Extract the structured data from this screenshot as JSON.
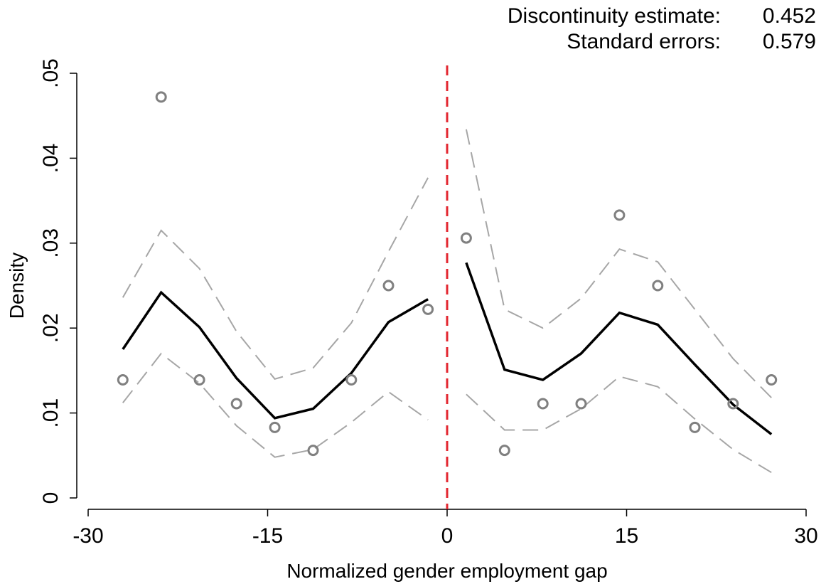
{
  "annotations": {
    "estimate_label": "Discontinuity estimate:",
    "estimate_value": "0.452",
    "se_label": "Standard errors:",
    "se_value": "0.579"
  },
  "chart_data": {
    "type": "scatter",
    "title": "",
    "xlabel": "Normalized gender employment gap",
    "ylabel": "Density",
    "xlim": [
      -30,
      30
    ],
    "ylim": [
      0,
      0.05
    ],
    "xticks": [
      -30,
      -15,
      0,
      15,
      30
    ],
    "xtick_labels": [
      "-30",
      "-15",
      "0",
      "15",
      "30"
    ],
    "yticks": [
      0,
      0.01,
      0.02,
      0.03,
      0.04,
      0.05
    ],
    "ytick_labels": [
      "0",
      ".01",
      ".02",
      ".03",
      ".04",
      ".05"
    ],
    "cutoff": 0,
    "colors": {
      "fit": "#000000",
      "ci": "#a6a6a6",
      "points": "#808080",
      "cutoff": "#e3262f"
    },
    "grid": false,
    "left": {
      "bins_x": [
        -27.1,
        -23.9,
        -20.7,
        -17.6,
        -14.4,
        -11.2,
        -8.0,
        -4.9,
        -1.6
      ],
      "bins_y": [
        0.0139,
        0.0472,
        0.0139,
        0.0111,
        0.0083,
        0.0056,
        0.0139,
        0.025,
        0.0222
      ],
      "fit_x": [
        -27.1,
        -23.9,
        -20.7,
        -17.6,
        -14.4,
        -11.2,
        -8.0,
        -4.9,
        -1.6
      ],
      "fit_y": [
        0.0175,
        0.0242,
        0.0201,
        0.0141,
        0.0094,
        0.0105,
        0.0147,
        0.0207,
        0.0234
      ],
      "ci_upper": [
        0.0236,
        0.0315,
        0.027,
        0.0196,
        0.014,
        0.0153,
        0.0206,
        0.029,
        0.0377
      ],
      "ci_lower": [
        0.0112,
        0.017,
        0.0135,
        0.0085,
        0.0048,
        0.0057,
        0.0089,
        0.0125,
        0.0092
      ]
    },
    "right": {
      "bins_x": [
        1.6,
        4.8,
        8.0,
        11.2,
        14.4,
        17.6,
        20.7,
        23.9,
        27.1
      ],
      "bins_y": [
        0.0306,
        0.0056,
        0.0111,
        0.0111,
        0.0333,
        0.025,
        0.0083,
        0.0111,
        0.0139
      ],
      "fit_x": [
        1.6,
        4.8,
        8.0,
        11.2,
        14.4,
        17.6,
        20.7,
        23.9,
        27.1
      ],
      "fit_y": [
        0.0277,
        0.0151,
        0.0139,
        0.017,
        0.0218,
        0.0204,
        0.0157,
        0.011,
        0.0075
      ],
      "ci_upper": [
        0.0434,
        0.0222,
        0.02,
        0.0235,
        0.0293,
        0.0278,
        0.0222,
        0.0164,
        0.0118
      ],
      "ci_lower": [
        0.0122,
        0.008,
        0.008,
        0.0105,
        0.0143,
        0.0131,
        0.0093,
        0.0057,
        0.003
      ]
    }
  }
}
